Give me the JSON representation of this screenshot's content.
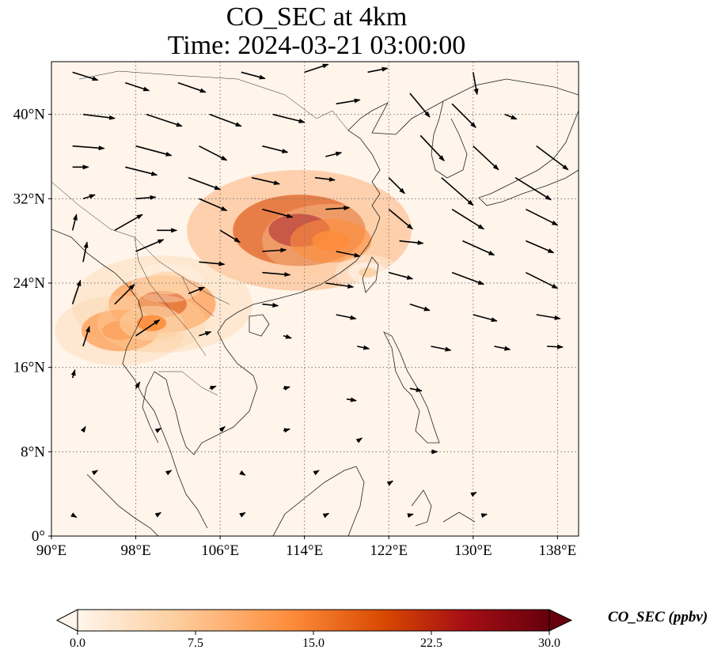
{
  "title": {
    "line1": "CO_SEC at 4km",
    "line2": "Time: 2024-03-21 03:00:00"
  },
  "map_extent": {
    "lon": [
      90,
      140
    ],
    "lat": [
      0,
      45
    ]
  },
  "x_ticks": [
    {
      "value": 90,
      "label": "90°E"
    },
    {
      "value": 98,
      "label": "98°E"
    },
    {
      "value": 106,
      "label": "106°E"
    },
    {
      "value": 114,
      "label": "114°E"
    },
    {
      "value": 122,
      "label": "122°E"
    },
    {
      "value": 130,
      "label": "130°E"
    },
    {
      "value": 138,
      "label": "138°E"
    }
  ],
  "y_ticks": [
    {
      "value": 0,
      "label": "0°"
    },
    {
      "value": 8,
      "label": "8°N"
    },
    {
      "value": 16,
      "label": "16°N"
    },
    {
      "value": 24,
      "label": "24°N"
    },
    {
      "value": 32,
      "label": "32°N"
    },
    {
      "value": 40,
      "label": "40°N"
    }
  ],
  "colorbar": {
    "label": "CO_SEC (ppbv)",
    "min": 0,
    "max": 30,
    "ticks": [
      "0.0",
      "7.5",
      "15.0",
      "22.5",
      "30.0"
    ],
    "colors": [
      "#fff5eb",
      "#fdd0a2",
      "#fd8d3c",
      "#d94801",
      "#a50f15",
      "#67000d"
    ]
  },
  "background_color": "#fff5eb",
  "hotspots": [
    {
      "lon": 113.5,
      "lat": 29.0,
      "value": 26
    },
    {
      "lon": 116.5,
      "lat": 28.0,
      "value": 14
    },
    {
      "lon": 100.5,
      "lat": 22.0,
      "value": 20
    },
    {
      "lon": 96.5,
      "lat": 19.5,
      "value": 13
    },
    {
      "lon": 99.5,
      "lat": 20.2,
      "value": 10
    },
    {
      "lon": 101.0,
      "lat": 24.0,
      "value": 5
    },
    {
      "lon": 120.0,
      "lat": 25.0,
      "value": 4
    }
  ],
  "wind_vectors": [
    {
      "lon": 92,
      "lat": 44,
      "u": 3.2,
      "v": -1.0
    },
    {
      "lon": 97,
      "lat": 43,
      "u": 3.0,
      "v": -1.0
    },
    {
      "lon": 102,
      "lat": 43,
      "u": 3.5,
      "v": -1.2
    },
    {
      "lon": 108,
      "lat": 44,
      "u": 3.0,
      "v": -0.8
    },
    {
      "lon": 114,
      "lat": 44,
      "u": 3.0,
      "v": 1.0
    },
    {
      "lon": 120,
      "lat": 44,
      "u": 2.5,
      "v": 0.5
    },
    {
      "lon": 130,
      "lat": 44,
      "u": 0.5,
      "v": -2.8
    },
    {
      "lon": 93,
      "lat": 40,
      "u": 4.0,
      "v": -0.5
    },
    {
      "lon": 99,
      "lat": 40,
      "u": 4.5,
      "v": -1.5
    },
    {
      "lon": 105,
      "lat": 40,
      "u": 4.0,
      "v": -1.5
    },
    {
      "lon": 111,
      "lat": 40,
      "u": 4.0,
      "v": -1.0
    },
    {
      "lon": 117,
      "lat": 41,
      "u": 3.0,
      "v": 0.5
    },
    {
      "lon": 124,
      "lat": 42,
      "u": 2.5,
      "v": -3.0
    },
    {
      "lon": 128,
      "lat": 41,
      "u": 3.0,
      "v": -3.0
    },
    {
      "lon": 133,
      "lat": 40,
      "u": 1.5,
      "v": -0.6
    },
    {
      "lon": 92,
      "lat": 37,
      "u": 4.0,
      "v": -0.3
    },
    {
      "lon": 98,
      "lat": 37,
      "u": 4.5,
      "v": -1.2
    },
    {
      "lon": 104,
      "lat": 37,
      "u": 3.5,
      "v": -1.8
    },
    {
      "lon": 110,
      "lat": 37,
      "u": 3.2,
      "v": -0.8
    },
    {
      "lon": 116,
      "lat": 36,
      "u": 2.0,
      "v": 0.5
    },
    {
      "lon": 125,
      "lat": 38,
      "u": 3.0,
      "v": -3.2
    },
    {
      "lon": 130,
      "lat": 37,
      "u": 3.2,
      "v": -3.0
    },
    {
      "lon": 136,
      "lat": 37,
      "u": 4.0,
      "v": -3.0
    },
    {
      "lon": 92,
      "lat": 35,
      "u": 2.0,
      "v": 0.0
    },
    {
      "lon": 97,
      "lat": 35,
      "u": 4.0,
      "v": -1.0
    },
    {
      "lon": 103,
      "lat": 34,
      "u": 4.0,
      "v": -1.5
    },
    {
      "lon": 109,
      "lat": 34,
      "u": 3.5,
      "v": -0.8
    },
    {
      "lon": 115,
      "lat": 34,
      "u": 2.5,
      "v": -0.3
    },
    {
      "lon": 122,
      "lat": 34,
      "u": 2.0,
      "v": -2.0
    },
    {
      "lon": 127,
      "lat": 34,
      "u": 4.0,
      "v": -3.5
    },
    {
      "lon": 134,
      "lat": 34,
      "u": 4.5,
      "v": -2.8
    },
    {
      "lon": 93,
      "lat": 32,
      "u": 1.5,
      "v": 0.5
    },
    {
      "lon": 98,
      "lat": 32,
      "u": 2.5,
      "v": 0.2
    },
    {
      "lon": 104,
      "lat": 32,
      "u": 3.5,
      "v": -1.5
    },
    {
      "lon": 110,
      "lat": 31,
      "u": 3.8,
      "v": -1.0
    },
    {
      "lon": 116,
      "lat": 31,
      "u": 3.0,
      "v": 0.2
    },
    {
      "lon": 122,
      "lat": 31,
      "u": 3.0,
      "v": -2.5
    },
    {
      "lon": 128,
      "lat": 31,
      "u": 4.0,
      "v": -2.5
    },
    {
      "lon": 135,
      "lat": 31,
      "u": 4.0,
      "v": -2.0
    },
    {
      "lon": 92,
      "lat": 29,
      "u": 0.5,
      "v": 2.0
    },
    {
      "lon": 96,
      "lat": 29,
      "u": 3.5,
      "v": 2.0
    },
    {
      "lon": 100,
      "lat": 29,
      "u": 2.5,
      "v": 0.0
    },
    {
      "lon": 106,
      "lat": 29,
      "u": 2.5,
      "v": -1.5
    },
    {
      "lon": 110,
      "lat": 27,
      "u": 3.0,
      "v": 0.2
    },
    {
      "lon": 117,
      "lat": 27,
      "u": 3.0,
      "v": -0.6
    },
    {
      "lon": 123,
      "lat": 28,
      "u": 3.0,
      "v": -0.3
    },
    {
      "lon": 129,
      "lat": 28,
      "u": 4.0,
      "v": -1.8
    },
    {
      "lon": 135,
      "lat": 28,
      "u": 3.5,
      "v": -1.5
    },
    {
      "lon": 93,
      "lat": 26,
      "u": 0.5,
      "v": 2.5
    },
    {
      "lon": 98,
      "lat": 27,
      "u": 3.5,
      "v": 1.5
    },
    {
      "lon": 104,
      "lat": 26,
      "u": 3.2,
      "v": -0.3
    },
    {
      "lon": 110,
      "lat": 25,
      "u": 3.5,
      "v": -0.3
    },
    {
      "lon": 116,
      "lat": 24,
      "u": 3.5,
      "v": -0.5
    },
    {
      "lon": 122,
      "lat": 25,
      "u": 3.0,
      "v": -0.8
    },
    {
      "lon": 128,
      "lat": 25,
      "u": 4.0,
      "v": -1.5
    },
    {
      "lon": 135,
      "lat": 25,
      "u": 4.0,
      "v": -2.0
    },
    {
      "lon": 92,
      "lat": 22,
      "u": 1.0,
      "v": 3.0
    },
    {
      "lon": 96,
      "lat": 22,
      "u": 2.5,
      "v": 2.5
    },
    {
      "lon": 103,
      "lat": 23,
      "u": 2.0,
      "v": 0.8
    },
    {
      "lon": 110,
      "lat": 22,
      "u": 2.0,
      "v": -0.2
    },
    {
      "lon": 117,
      "lat": 21,
      "u": 2.5,
      "v": -0.5
    },
    {
      "lon": 124,
      "lat": 22,
      "u": 2.5,
      "v": -0.8
    },
    {
      "lon": 130,
      "lat": 21,
      "u": 3.0,
      "v": -0.8
    },
    {
      "lon": 136,
      "lat": 21,
      "u": 3.0,
      "v": -0.5
    },
    {
      "lon": 93,
      "lat": 18,
      "u": 0.8,
      "v": 2.5
    },
    {
      "lon": 98,
      "lat": 19,
      "u": 3.0,
      "v": 2.0
    },
    {
      "lon": 104,
      "lat": 19,
      "u": 1.5,
      "v": 0.5
    },
    {
      "lon": 112,
      "lat": 19,
      "u": 1.0,
      "v": -0.3
    },
    {
      "lon": 119,
      "lat": 18,
      "u": 1.5,
      "v": -0.3
    },
    {
      "lon": 126,
      "lat": 18,
      "u": 2.5,
      "v": -0.5
    },
    {
      "lon": 132,
      "lat": 18,
      "u": 2.0,
      "v": -0.4
    },
    {
      "lon": 137,
      "lat": 18,
      "u": 2.0,
      "v": -0.1
    },
    {
      "lon": 92,
      "lat": 15,
      "u": 0.3,
      "v": 1.0
    },
    {
      "lon": 98,
      "lat": 14,
      "u": 0.5,
      "v": 0.8
    },
    {
      "lon": 105,
      "lat": 14,
      "u": 0.8,
      "v": 0.3
    },
    {
      "lon": 112,
      "lat": 14,
      "u": 0.8,
      "v": 0.2
    },
    {
      "lon": 118,
      "lat": 13,
      "u": 1.2,
      "v": -0.2
    },
    {
      "lon": 124,
      "lat": 14,
      "u": 1.5,
      "v": -0.3
    },
    {
      "lon": 93,
      "lat": 10,
      "u": 0.3,
      "v": 0.5
    },
    {
      "lon": 100,
      "lat": 10,
      "u": 0.5,
      "v": 0.3
    },
    {
      "lon": 106,
      "lat": 10,
      "u": 0.6,
      "v": 0.5
    },
    {
      "lon": 112,
      "lat": 10,
      "u": 0.8,
      "v": 0.2
    },
    {
      "lon": 119,
      "lat": 9,
      "u": 0.6,
      "v": 0.4
    },
    {
      "lon": 126,
      "lat": 8,
      "u": 0.8,
      "v": 0.0
    },
    {
      "lon": 94,
      "lat": 6,
      "u": 0.5,
      "v": 0.3
    },
    {
      "lon": 101,
      "lat": 6,
      "u": 0.5,
      "v": 0.3
    },
    {
      "lon": 108,
      "lat": 6,
      "u": 0.5,
      "v": -0.3
    },
    {
      "lon": 115,
      "lat": 6,
      "u": 0.5,
      "v": 0.3
    },
    {
      "lon": 122,
      "lat": 5,
      "u": 0.5,
      "v": 0.3
    },
    {
      "lon": 130,
      "lat": 4,
      "u": 0.4,
      "v": 0.2
    },
    {
      "lon": 92,
      "lat": 2,
      "u": 0.5,
      "v": -0.3
    },
    {
      "lon": 100,
      "lat": 2,
      "u": 0.5,
      "v": 0.3
    },
    {
      "lon": 108,
      "lat": 2,
      "u": 0.5,
      "v": 0.3
    },
    {
      "lon": 116,
      "lat": 2,
      "u": 0.4,
      "v": 0.2
    },
    {
      "lon": 124,
      "lat": 2,
      "u": 0.4,
      "v": 0.1
    },
    {
      "lon": 131,
      "lat": 2,
      "u": 0.4,
      "v": 0.1
    }
  ]
}
